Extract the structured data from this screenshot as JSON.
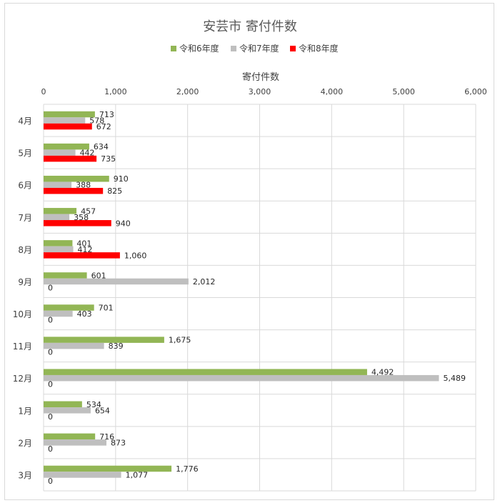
{
  "chart_data": {
    "type": "bar",
    "orientation": "horizontal",
    "title": "安芸市 寄付件数",
    "xlabel": "寄付件数",
    "ylabel": "",
    "xlim": [
      0,
      6000
    ],
    "x_ticks": [
      "0",
      "1,000",
      "2,000",
      "3,000",
      "4,000",
      "5,000",
      "6,000"
    ],
    "x_tick_values": [
      0,
      1000,
      2000,
      3000,
      4000,
      5000,
      6000
    ],
    "grid": true,
    "legend_position": "top",
    "categories": [
      "4月",
      "5月",
      "6月",
      "7月",
      "8月",
      "9月",
      "10月",
      "11月",
      "12月",
      "1月",
      "2月",
      "3月"
    ],
    "series": [
      {
        "name": "令和6年度",
        "color": "#92b655",
        "values": [
          713,
          634,
          910,
          457,
          401,
          601,
          701,
          1675,
          4492,
          534,
          716,
          1776
        ]
      },
      {
        "name": "令和7年度",
        "color": "#bfbfbf",
        "values": [
          578,
          442,
          388,
          358,
          412,
          2012,
          403,
          839,
          5489,
          654,
          873,
          1077
        ]
      },
      {
        "name": "令和8年度",
        "color": "#ff0000",
        "values": [
          672,
          735,
          825,
          940,
          1060,
          0,
          0,
          0,
          0,
          0,
          0,
          0
        ]
      }
    ]
  }
}
